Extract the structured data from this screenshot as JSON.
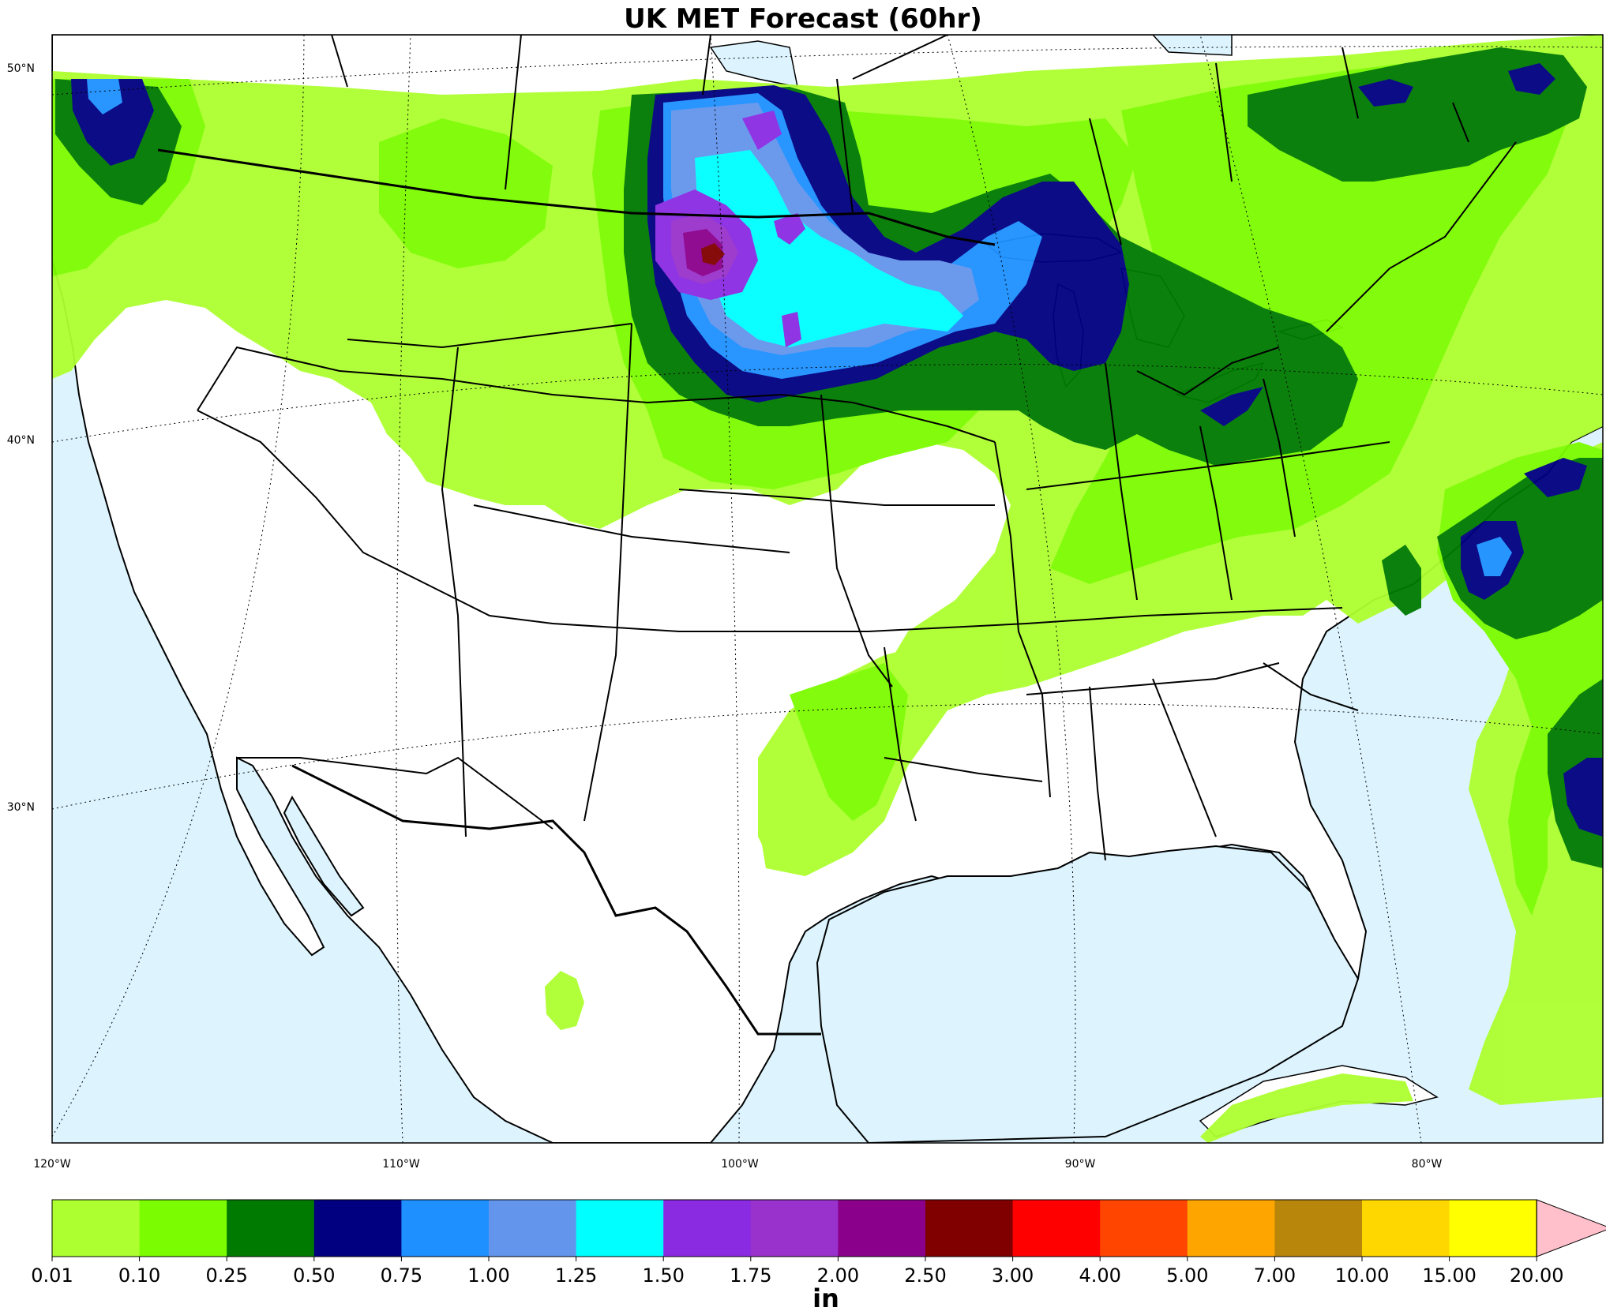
{
  "title": "UK MET Forecast (60hr)",
  "map": {
    "lat_labels": [
      "50°N",
      "40°N",
      "30°N"
    ],
    "lon_labels": [
      "120°W",
      "110°W",
      "100°W",
      "90°W",
      "80°W"
    ],
    "colors": {
      "ocean": "#ddf4fe",
      "land": "#ffffff",
      "border": "#000000"
    }
  },
  "colorbar": {
    "unit": "in",
    "tick_labels": [
      "0.01",
      "0.10",
      "0.25",
      "0.50",
      "0.75",
      "1.00",
      "1.25",
      "1.50",
      "1.75",
      "2.00",
      "2.50",
      "3.00",
      "4.00",
      "5.00",
      "7.00",
      "10.00",
      "15.00",
      "20.00"
    ],
    "colors": [
      "#adff2f",
      "#7cfc00",
      "#007a00",
      "#000080",
      "#1e90ff",
      "#6495ed",
      "#00ffff",
      "#8a2be2",
      "#9932cc",
      "#8b008b",
      "#800000",
      "#ff0000",
      "#ff4500",
      "#ffa500",
      "#b8860b",
      "#ffd700",
      "#ffff00"
    ],
    "extend_color": "#ffc0cb"
  }
}
